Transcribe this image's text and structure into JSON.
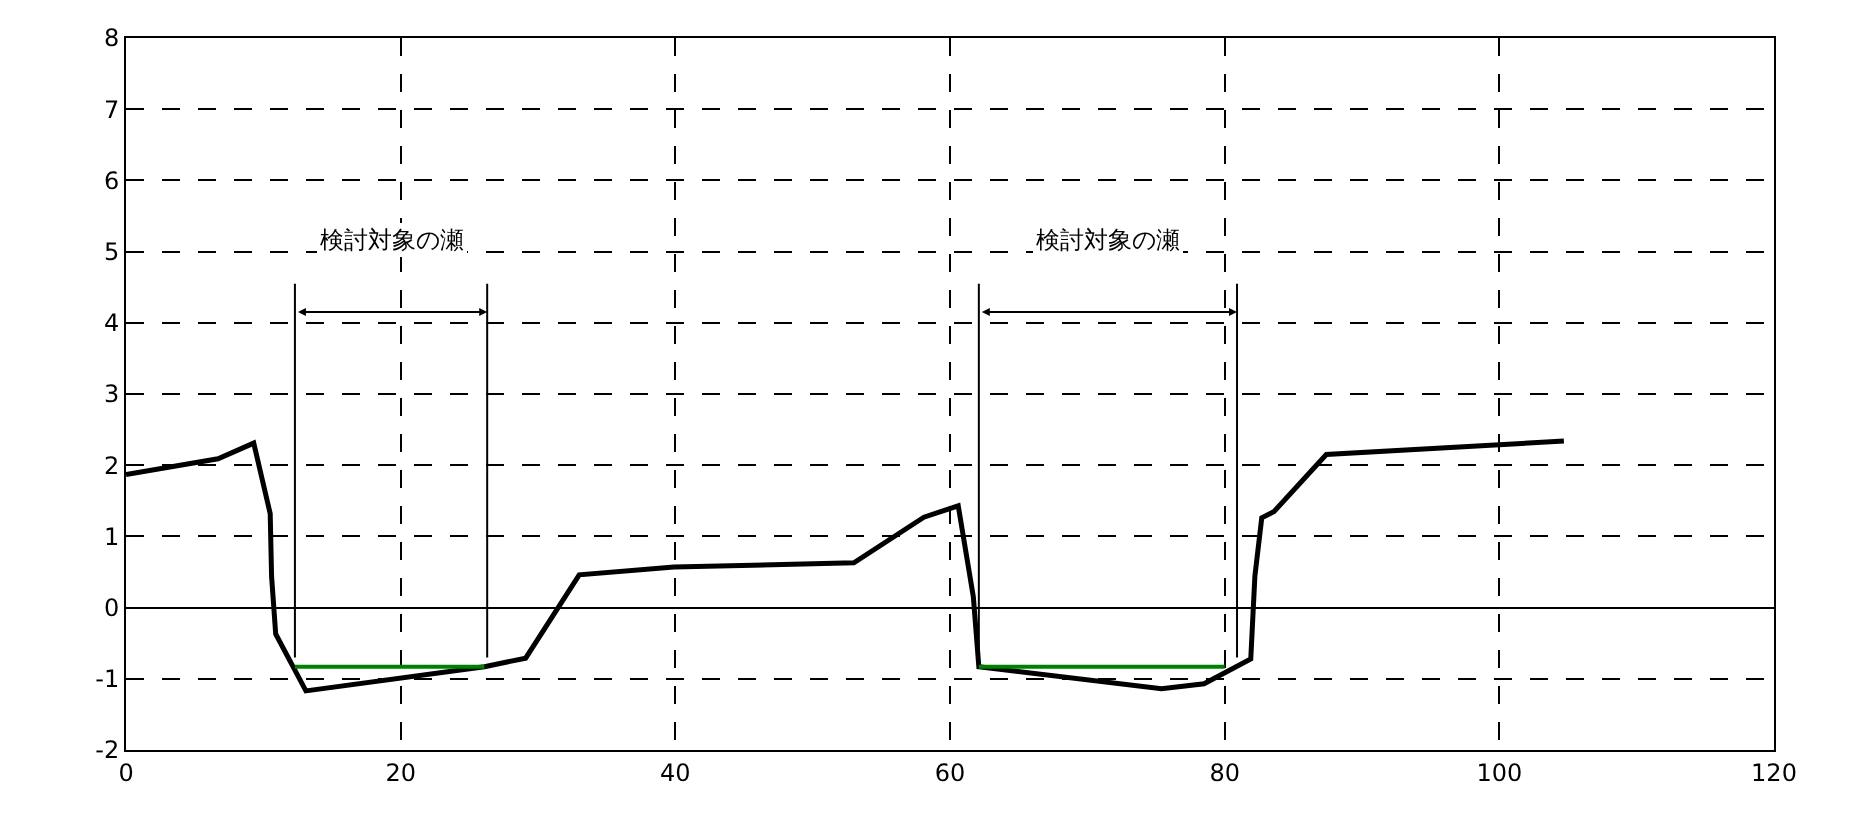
{
  "chart_data": {
    "type": "line",
    "series": [
      {
        "color": "#000000",
        "x": [
          0,
          6.7,
          9.3,
          10.5,
          10.6,
          10.9,
          13.1,
          26.1,
          29.1,
          33.0,
          39.9,
          53.0,
          58.1,
          60.6,
          61.7,
          62.1,
          75.4,
          78.5,
          81.9,
          82.2,
          82.7,
          83.6,
          87.4,
          104.7
        ],
        "values": [
          1.87,
          2.09,
          2.31,
          1.32,
          0.44,
          -0.37,
          -1.17,
          -0.83,
          -0.71,
          0.46,
          0.57,
          0.63,
          1.27,
          1.43,
          0.15,
          -0.83,
          -1.14,
          -1.07,
          -0.72,
          0.44,
          1.26,
          1.35,
          2.15,
          2.34
        ]
      },
      {
        "color": "#008000",
        "x": [
          12.3,
          26.1
        ],
        "values": [
          -0.83,
          -0.83
        ]
      },
      {
        "color": "#008000",
        "x": [
          62.1,
          80.0
        ],
        "values": [
          -0.83,
          -0.83
        ]
      }
    ],
    "ref_lines": [
      {
        "axis": "x",
        "value": 12.3,
        "color": "#000000"
      },
      {
        "axis": "x",
        "value": 26.3,
        "color": "#000000"
      },
      {
        "axis": "x",
        "value": 62.1,
        "color": "#000000"
      },
      {
        "axis": "x",
        "value": 80.9,
        "color": "#000000"
      }
    ],
    "annotations": [
      "検討対象の瀬",
      "検討対象の瀬"
    ],
    "xlim": [
      0,
      120
    ],
    "xticks": [
      0,
      20,
      40,
      60,
      80,
      100,
      120
    ],
    "ylim": [
      -2,
      8
    ],
    "yticks": [
      -2,
      -1,
      0,
      1,
      2,
      3,
      4,
      5,
      6,
      7,
      8
    ],
    "grid": true,
    "line_style": "solid",
    "marker": "none"
  }
}
